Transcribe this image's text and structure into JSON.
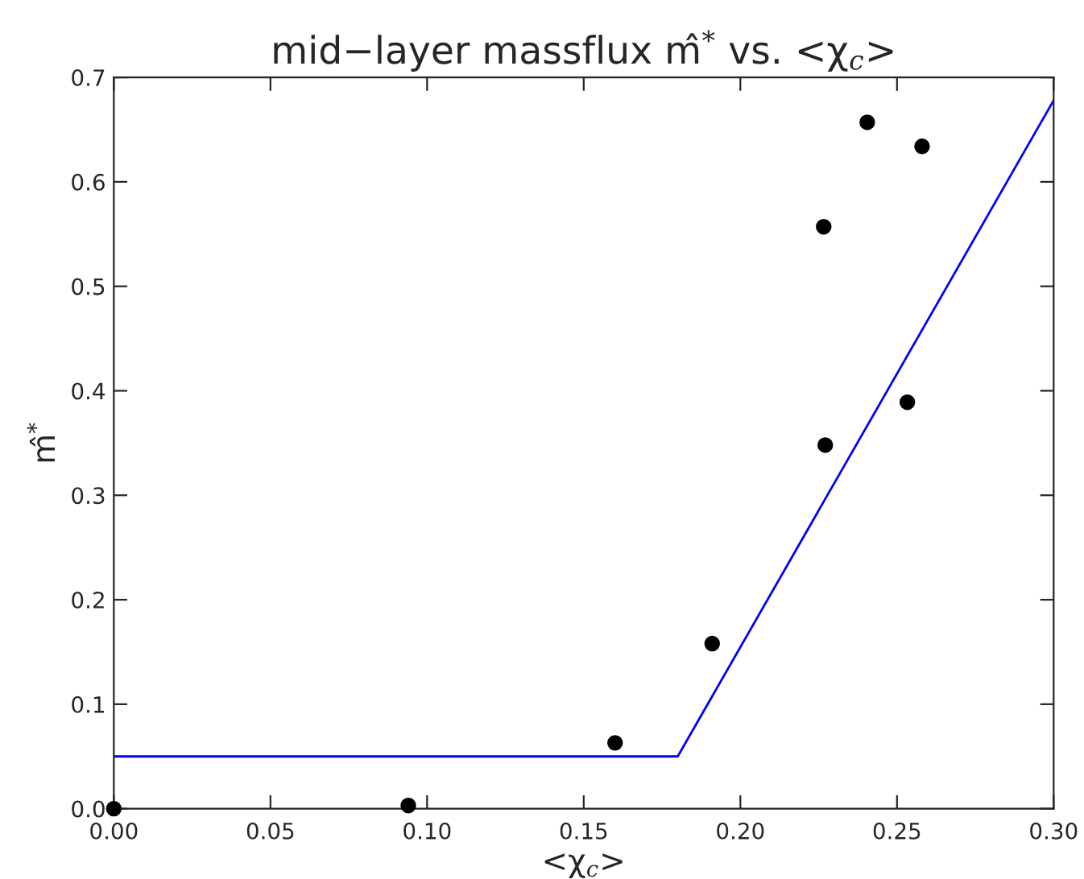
{
  "chart_data": {
    "type": "scatter",
    "title": "mid−layer massflux m̂$^{*}$ vs. <χ$_{c}$>",
    "xlabel": "<χ$_{c}$>",
    "ylabel": "m̂$^{*}$",
    "series": [
      {
        "color": "#000000",
        "marker": "circle",
        "x": [
          0.0,
          0.094,
          0.16,
          0.191,
          0.2266,
          0.2271,
          0.2405,
          0.2533,
          0.258
        ],
        "values": [
          0.0,
          0.003,
          0.063,
          0.158,
          0.557,
          0.348,
          0.657,
          0.389,
          0.634
        ]
      },
      {
        "type": "line",
        "marker": "none",
        "color": "#0000ff",
        "x": [
          0.0,
          0.18,
          0.3
        ],
        "values": [
          0.05,
          0.05,
          0.678
        ]
      }
    ],
    "xlim": [
      0.0,
      0.3
    ],
    "ylim": [
      0.0,
      0.7
    ],
    "xticks": [
      {
        "value": 0.0,
        "label": "0.00"
      },
      {
        "value": 0.05,
        "label": "0.05"
      },
      {
        "value": 0.1,
        "label": "0.10"
      },
      {
        "value": 0.15,
        "label": "0.15"
      },
      {
        "value": 0.2,
        "label": "0.20"
      },
      {
        "value": 0.25,
        "label": "0.25"
      },
      {
        "value": 0.3,
        "label": "0.30"
      }
    ],
    "yticks": [
      {
        "value": 0.0,
        "label": "0.0"
      },
      0.1,
      0.2,
      0.3,
      0.4,
      0.5,
      0.6,
      0.7
    ],
    "grid": false
  }
}
